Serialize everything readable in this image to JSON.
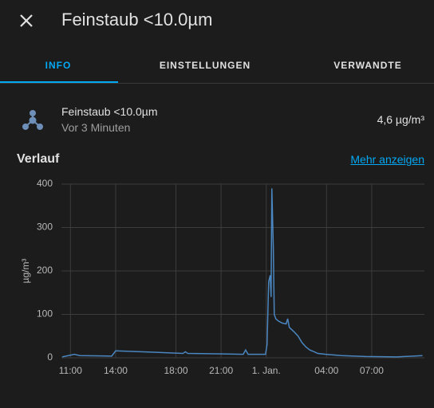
{
  "header": {
    "title": "Feinstaub <10.0µm"
  },
  "tabs": [
    "INFO",
    "EINSTELLUNGEN",
    "VERWANDTE"
  ],
  "entity": {
    "name": "Feinstaub <10.0µm",
    "updated": "Vor 3 Minuten",
    "state": "4,6 µg/m³"
  },
  "history": {
    "title": "Verlauf",
    "link": "Mehr anzeigen"
  },
  "chart_data": {
    "type": "line",
    "y_label": "µg/m³",
    "x": [
      10.45,
      11.26,
      11.63,
      13.74,
      14.0,
      16.37,
      18.47,
      18.63,
      18.79,
      21.1,
      22.47,
      22.63,
      22.79,
      23.95,
      24.05,
      24.16,
      24.26,
      24.32,
      24.37,
      24.47,
      24.53,
      24.63,
      24.79,
      25.05,
      25.32,
      25.42,
      25.53,
      25.84,
      26.11,
      26.37,
      26.63,
      26.89,
      27.16,
      27.42,
      27.95,
      29.0,
      30.58,
      32.68,
      33.74,
      34.37
    ],
    "series": [
      {
        "name": "Feinstaub <10.0µm",
        "color": "#4a86c0",
        "values": [
          2,
          8,
          5,
          4,
          16,
          13,
          10,
          14,
          10,
          9,
          8,
          18,
          8,
          8,
          30,
          175,
          190,
          140,
          390,
          250,
          100,
          90,
          85,
          80,
          78,
          90,
          70,
          60,
          50,
          35,
          25,
          18,
          14,
          10,
          8,
          5,
          3,
          2,
          4,
          5
        ]
      }
    ],
    "xlim": [
      10.4,
      34.5
    ],
    "xticks": [
      {
        "value": 11,
        "label": "11:00"
      },
      {
        "value": 14,
        "label": "14:00"
      },
      {
        "value": 18,
        "label": "18:00"
      },
      {
        "value": 21,
        "label": "21:00"
      },
      {
        "value": 24,
        "label": "1. Jan."
      },
      {
        "value": 28,
        "label": "04:00"
      },
      {
        "value": 31,
        "label": "07:00"
      }
    ],
    "ylim": [
      0,
      400
    ],
    "yticks": [
      0,
      100,
      200,
      300,
      400
    ],
    "grid": true
  }
}
